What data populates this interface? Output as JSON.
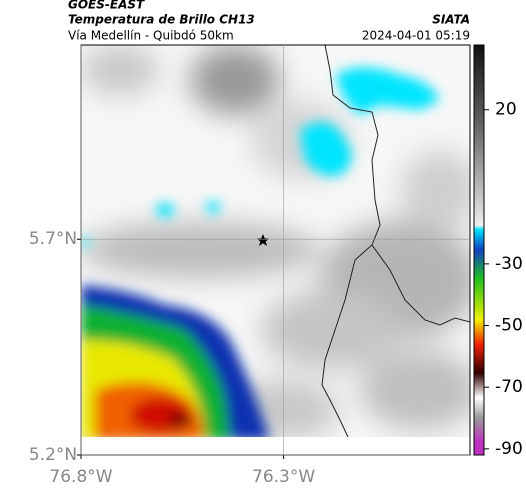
{
  "header": {
    "title": "GOES-EAST",
    "subtitle": "Temperatura de Brillo CH13",
    "route": "Vía Medellín - Quibdó 50km",
    "source": "SIATA",
    "timestamp": "2024-04-01 05:19"
  },
  "map": {
    "xlim": [
      -76.8,
      -75.84
    ],
    "ylim": [
      5.2,
      6.15
    ],
    "xticks": [
      {
        "value": -76.8,
        "label": "76.8°W"
      },
      {
        "value": -76.3,
        "label": "76.3°W"
      }
    ],
    "yticks": [
      {
        "value": 5.7,
        "label": "5.7°N"
      },
      {
        "value": 5.2,
        "label": "5.2°N"
      }
    ]
  },
  "colorbar": {
    "lim": [
      -92,
      41
    ],
    "ticks": [
      20,
      -30,
      -50,
      -70,
      -90
    ]
  }
}
